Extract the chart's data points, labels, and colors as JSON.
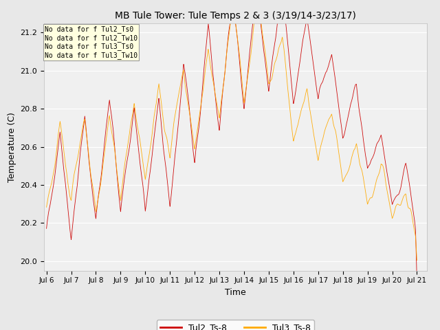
{
  "title": "MB Tule Tower: Tule Temps 2 & 3 (3/19/14-3/23/17)",
  "xlabel": "Time",
  "ylabel": "Temperature (C)",
  "ylim": [
    19.95,
    21.25
  ],
  "yticks": [
    20.0,
    20.2,
    20.4,
    20.6,
    20.8,
    21.0,
    21.2
  ],
  "xtick_labels": [
    "Jul 6",
    "Jul 7",
    "Jul 8",
    "Jul 9",
    "Jul 10",
    "Jul 11",
    "Jul 12",
    "Jul 13",
    "Jul 14",
    "Jul 15",
    "Jul 16",
    "Jul 17",
    "Jul 18",
    "Jul 19",
    "Jul 20",
    "Jul 21"
  ],
  "color_tul2": "#cc0000",
  "color_tul3": "#ffaa00",
  "legend_labels": [
    "Tul2_Ts-8",
    "Tul3_Ts-8"
  ],
  "annotation_lines": [
    "No data for f Tul2_Ts0",
    "No data for f Tul2_Tw10",
    "No data for f Tul3_Ts0",
    "No data for f Tul3_Tw10"
  ],
  "background_color": "#e8e8e8",
  "plot_bg_color": "#f0f0f0",
  "n_points": 2400
}
